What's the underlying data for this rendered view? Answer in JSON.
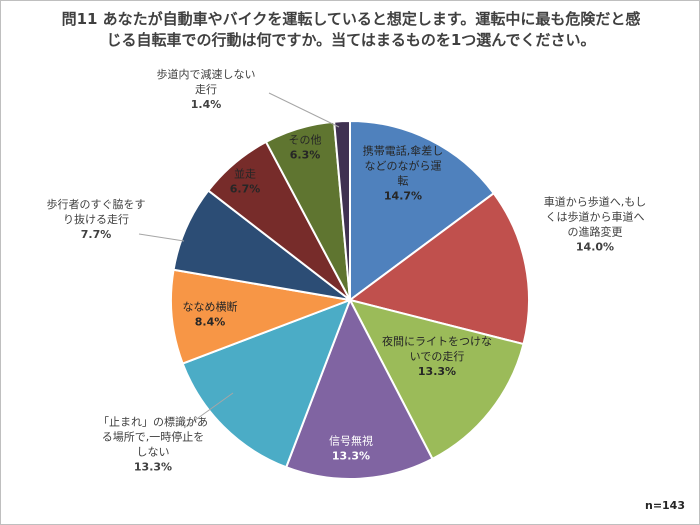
{
  "chart_data": {
    "type": "pie",
    "title": "問11 あなたが自動車やバイクを運転していると想定します。運転中に最も危険だと感じる自転車での行動は何ですか。当てはまるものを1つ選んでください。",
    "categories": [
      "携帯電話,傘差しなどのながら運転",
      "車道から歩道へ,もしくは歩道から車道への進路変更",
      "夜間にライトをつけないでの走行",
      "信号無視",
      "「止まれ」の標識がある場所で,一時停止をしない",
      "ななめ横断",
      "歩行者のすぐ脇をすり抜ける走行",
      "並走",
      "その他",
      "歩道内で減速しない走行"
    ],
    "values": [
      14.7,
      14.0,
      13.3,
      13.3,
      13.3,
      8.4,
      7.7,
      6.7,
      6.3,
      1.4
    ],
    "value_labels": [
      "14.7%",
      "14.0%",
      "13.3%",
      "13.3%",
      "13.3%",
      "8.4%",
      "7.7%",
      "6.7%",
      "6.3%",
      "1.4%"
    ],
    "colors": [
      "#4f81bd",
      "#c0504d",
      "#9bbb59",
      "#8064a2",
      "#4bacc6",
      "#f79646",
      "#2c4d75",
      "#772c2a",
      "#5f7530",
      "#3f3151"
    ],
    "sample_size": "n=143"
  }
}
